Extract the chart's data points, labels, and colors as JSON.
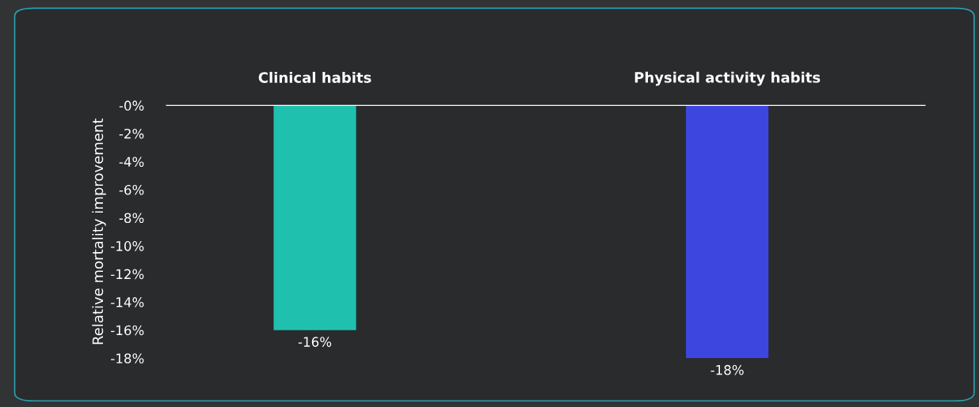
{
  "chart_data": {
    "type": "bar",
    "ylabel": "Relative mortality improvement",
    "categories": [
      "Clinical habits",
      "Physical activity habits"
    ],
    "values": [
      -16,
      -18
    ],
    "colors": [
      "#20c0ae",
      "#3d47e0"
    ],
    "value_labels": [
      "-16%",
      "-18%"
    ],
    "ylim": [
      -18,
      0
    ],
    "yticks": [
      {
        "value": 0,
        "label": "-0%"
      },
      {
        "value": -2,
        "label": "-2%"
      },
      {
        "value": -4,
        "label": "-4%"
      },
      {
        "value": -6,
        "label": "-6%"
      },
      {
        "value": -8,
        "label": "-8%"
      },
      {
        "value": -10,
        "label": "-10%"
      },
      {
        "value": -12,
        "label": "-12%"
      },
      {
        "value": -14,
        "label": "-14%"
      },
      {
        "value": -16,
        "label": "-16%"
      },
      {
        "value": -18,
        "label": "-18%"
      }
    ],
    "grid": false
  }
}
